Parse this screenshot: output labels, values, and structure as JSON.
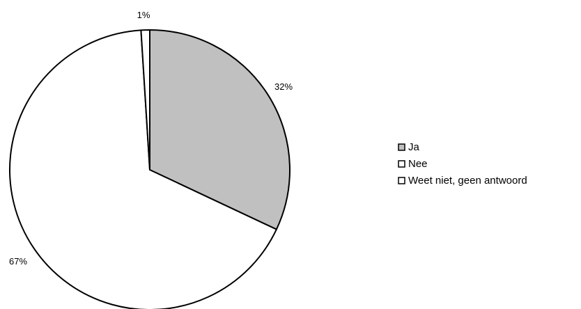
{
  "chart_data": {
    "type": "pie",
    "categories": [
      "Ja",
      "Nee",
      "Weet niet, geen antwoord"
    ],
    "values": [
      32,
      67,
      1
    ],
    "labels": [
      "32%",
      "67%",
      "1%"
    ],
    "colors": [
      "#c0c0c0",
      "#ffffff",
      "#ffffff"
    ],
    "legend_position": "right",
    "start_angle": "top",
    "direction": "clockwise"
  }
}
